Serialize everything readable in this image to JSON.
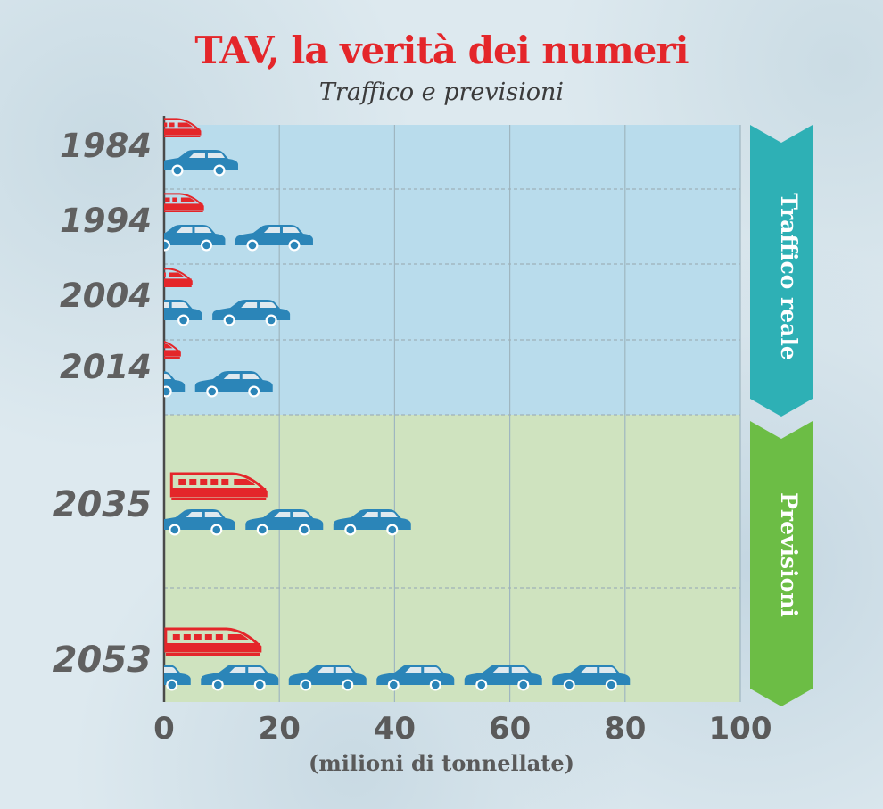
{
  "title": "TAV, la verità dei numeri",
  "subtitle": "Traffico e previsioni",
  "colors": {
    "train": "#e4262a",
    "car": "#2b85b8",
    "real_bg": "#b9dcec",
    "forecast_bg": "#cfe3bf",
    "real_arrow": "#2eb0b5",
    "forecast_arrow": "#6cbd45"
  },
  "icons": {
    "rail": "train-icon",
    "road": "car-icon"
  },
  "sections": {
    "real": "Traffico reale",
    "forecast": "Previsioni"
  },
  "chart_data": {
    "type": "bar",
    "orientation": "horizontal",
    "categories": [
      "1984",
      "1994",
      "2004",
      "2014",
      "2035",
      "2053"
    ],
    "series": [
      {
        "icon": "train-icon",
        "values": [
          6.5,
          7,
          5,
          3,
          18,
          17
        ]
      },
      {
        "icon": "car-icon",
        "values": [
          13,
          26,
          22,
          19,
          43,
          81
        ]
      }
    ],
    "xlim": [
      0,
      100
    ],
    "xticks": [
      "0",
      "20",
      "40",
      "60",
      "80",
      "100"
    ],
    "xlabel": "(milioni di tonnellate)",
    "ylabel": "",
    "grid": true
  }
}
